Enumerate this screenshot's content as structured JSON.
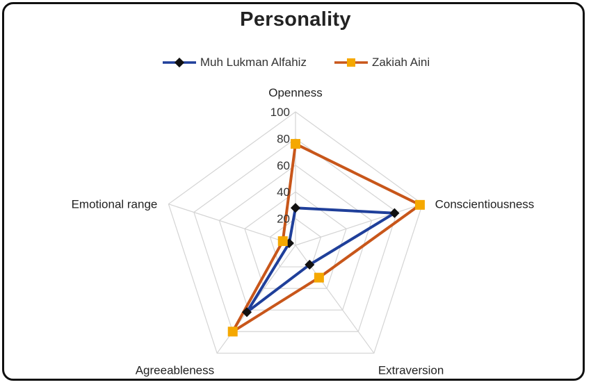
{
  "chart_data": {
    "type": "radar",
    "title": "Personality",
    "categories": [
      "Openness",
      "Conscientiousness",
      "Extraversion",
      "Agreeableness",
      "Emotional range"
    ],
    "rlim": [
      0,
      100
    ],
    "ticks": [
      "20",
      "40",
      "60",
      "80",
      "100"
    ],
    "legend_position": "top",
    "grid": true,
    "series": [
      {
        "name": "Muh Lukman Alfahiz",
        "values": [
          28,
          78,
          18,
          62,
          5
        ],
        "color": "#1f3f9a",
        "marker": "diamond",
        "marker_color": "#111111"
      },
      {
        "name": "Zakiah Aini",
        "values": [
          76,
          98,
          30,
          80,
          10
        ],
        "color": "#c8561a",
        "marker": "square",
        "marker_color": "#f5a800"
      }
    ]
  }
}
